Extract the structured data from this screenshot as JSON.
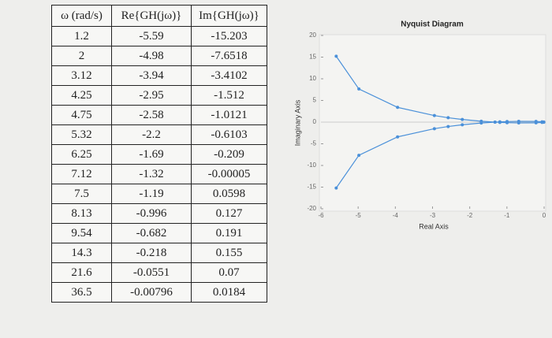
{
  "table": {
    "header": [
      "ω (rad/s)",
      "Re{GH(jω)}",
      "Im{GH(jω)}"
    ],
    "rows": [
      [
        "1.2",
        "-5.59",
        "-15.203"
      ],
      [
        "2",
        "-4.98",
        "-7.6518"
      ],
      [
        "3.12",
        "-3.94",
        "-3.4102"
      ],
      [
        "4.25",
        "-2.95",
        "-1.512"
      ],
      [
        "4.75",
        "-2.58",
        "-1.0121"
      ],
      [
        "5.32",
        "-2.2",
        "-0.6103"
      ],
      [
        "6.25",
        "-1.69",
        "-0.209"
      ],
      [
        "7.12",
        "-1.32",
        "-0.00005"
      ],
      [
        "7.5",
        "-1.19",
        "0.0598"
      ],
      [
        "8.13",
        "-0.996",
        "0.127"
      ],
      [
        "9.54",
        "-0.682",
        "0.191"
      ],
      [
        "14.3",
        "-0.218",
        "0.155"
      ],
      [
        "21.6",
        "-0.0551",
        "0.07"
      ],
      [
        "36.5",
        "-0.00796",
        "0.0184"
      ]
    ]
  },
  "chart_data": {
    "type": "line",
    "title": "Nyquist Diagram",
    "x_label": "Real Axis",
    "y_label": "Imaginary Axis",
    "x": [
      -5.59,
      -4.98,
      -3.94,
      -2.95,
      -2.58,
      -2.2,
      -1.69,
      -1.32,
      -1.19,
      -0.996,
      -0.682,
      -0.218,
      -0.0551,
      -0.00796
    ],
    "series": [
      {
        "color": "#4a90d9",
        "values": [
          -15.203,
          -7.6518,
          -3.4102,
          -1.512,
          -1.0121,
          -0.6103,
          -0.209,
          -5e-05,
          0.0598,
          0.127,
          0.191,
          0.155,
          0.07,
          0.0184
        ]
      },
      {
        "color": "#4a90d9",
        "values": [
          15.203,
          7.6518,
          3.4102,
          1.512,
          1.0121,
          0.6103,
          0.209,
          5e-05,
          -0.0598,
          -0.127,
          -0.191,
          -0.155,
          -0.07,
          -0.0184
        ]
      }
    ],
    "xlim": [
      -6,
      0
    ],
    "xticks": [
      -6,
      -5,
      -4,
      -3,
      -2,
      -1,
      0
    ],
    "ylim": [
      -20,
      20
    ],
    "yticks": [
      -20,
      -15,
      -10,
      -5,
      0,
      5,
      10,
      15,
      20
    ]
  }
}
